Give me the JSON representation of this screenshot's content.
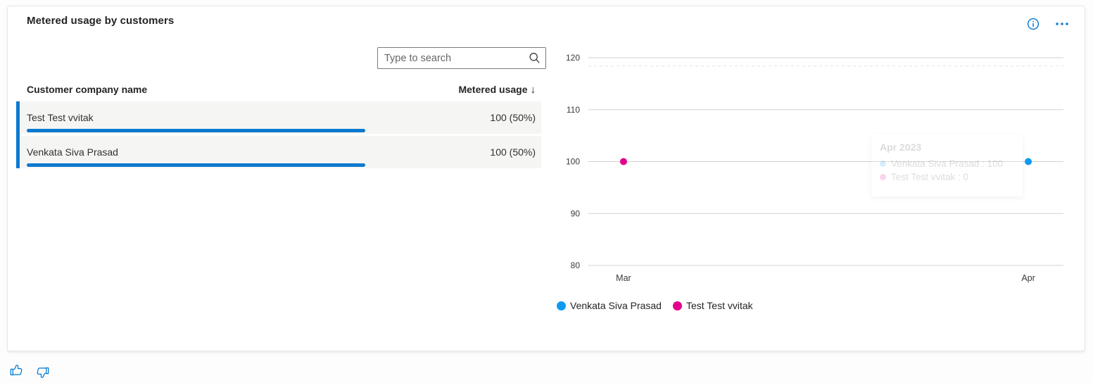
{
  "card": {
    "title": "Metered usage by customers"
  },
  "toolbar": {
    "info_icon": "info-icon",
    "more_icon": "more-options-icon",
    "icon_color": "#0078d4"
  },
  "search": {
    "placeholder": "Type to search",
    "icon": "search-icon"
  },
  "table": {
    "columns": [
      {
        "label": "Customer company name"
      },
      {
        "label": "Metered usage",
        "sort": "descending",
        "sort_glyph": "↓"
      }
    ],
    "rows": [
      {
        "name": "Test Test vvitak",
        "value": "100 (50%)",
        "bar_pct": 65
      },
      {
        "name": "Venkata Siva Prasad",
        "value": "100 (50%)",
        "bar_pct": 65
      }
    ],
    "bar_color": "#0b79d0"
  },
  "chart_data": {
    "type": "scatter",
    "title": "",
    "x_categories": [
      "Mar",
      "Apr"
    ],
    "y_ticks": [
      120,
      110,
      100,
      90,
      80
    ],
    "ylim": [
      80,
      120
    ],
    "grid": true,
    "reference_line": {
      "value": 118.4,
      "style": "dashed"
    },
    "series": [
      {
        "name": "Venkata Siva Prasad",
        "color": "#0f9af0",
        "points": [
          {
            "x": "Apr",
            "y": 100
          }
        ]
      },
      {
        "name": "Test Test vvitak",
        "color": "#e3008c",
        "points": [
          {
            "x": "Mar",
            "y": 100
          }
        ]
      }
    ],
    "legend_position": "bottom-left",
    "tooltip": {
      "title": "Apr 2023",
      "entries": [
        {
          "name": "Venkata Siva Prasad",
          "value": "100",
          "color": "#0f9af0"
        },
        {
          "name": "Test Test vvitak",
          "value": "0",
          "color": "#e3008c"
        }
      ]
    }
  },
  "feedback": {
    "thumbs_up": "thumbs-up",
    "thumbs_down": "thumbs-down"
  }
}
